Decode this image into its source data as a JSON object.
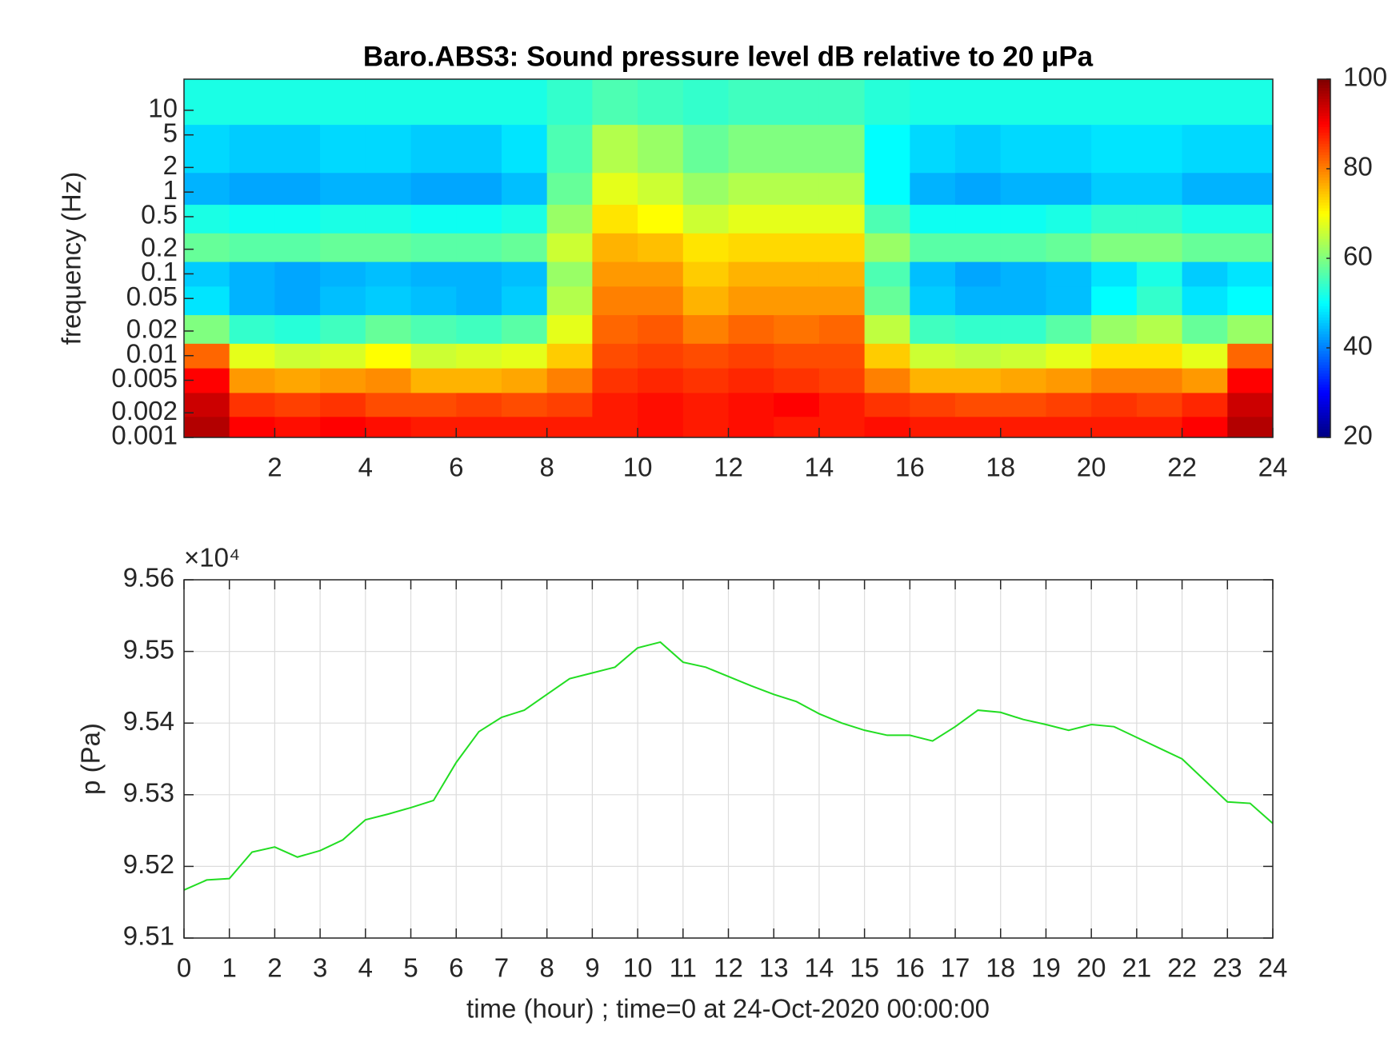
{
  "chart_data": [
    {
      "type": "heatmap",
      "title": "Baro.ABS3: Sound pressure level dB relative to 20 μPa",
      "y_label": "frequency (Hz)",
      "colormap": "jet",
      "log_y": true,
      "x": [
        0.5,
        1.5,
        2.5,
        3.5,
        4.5,
        5.5,
        6.5,
        7.5,
        8.5,
        9.5,
        10.5,
        11.5,
        12.5,
        13.5,
        14.5,
        15.5,
        16.5,
        17.5,
        18.5,
        19.5,
        20.5,
        21.5,
        22.5,
        23.5
      ],
      "y": [
        0.0013,
        0.0025,
        0.005,
        0.01,
        0.02,
        0.05,
        0.1,
        0.2,
        0.5,
        1,
        3,
        15
      ],
      "z": [
        [
          96,
          90,
          89,
          90,
          89,
          88,
          88,
          88,
          88,
          88,
          89,
          88,
          89,
          88,
          88,
          89,
          88,
          88,
          88,
          88,
          88,
          88,
          90,
          96
        ],
        [
          94,
          86,
          85,
          86,
          84,
          84,
          85,
          84,
          85,
          88,
          89,
          88,
          89,
          90,
          88,
          86,
          85,
          84,
          84,
          85,
          86,
          85,
          87,
          94
        ],
        [
          90,
          78,
          77,
          78,
          79,
          76,
          76,
          77,
          80,
          86,
          87,
          86,
          87,
          86,
          85,
          80,
          76,
          76,
          77,
          78,
          80,
          80,
          78,
          90
        ],
        [
          82,
          68,
          66,
          67,
          70,
          66,
          67,
          68,
          74,
          84,
          85,
          84,
          85,
          84,
          84,
          74,
          66,
          65,
          66,
          68,
          72,
          72,
          68,
          82
        ],
        [
          60,
          54,
          53,
          55,
          58,
          56,
          55,
          57,
          68,
          82,
          83,
          80,
          82,
          81,
          82,
          65,
          55,
          54,
          54,
          57,
          62,
          64,
          58,
          62
        ],
        [
          48,
          44,
          43,
          45,
          46,
          45,
          44,
          46,
          64,
          80,
          80,
          76,
          78,
          78,
          78,
          58,
          46,
          44,
          44,
          45,
          50,
          54,
          48,
          50
        ],
        [
          46,
          44,
          43,
          44,
          45,
          44,
          44,
          45,
          62,
          78,
          78,
          74,
          76,
          76,
          76,
          56,
          45,
          43,
          44,
          45,
          48,
          52,
          46,
          48
        ],
        [
          58,
          57,
          57,
          58,
          58,
          57,
          57,
          58,
          66,
          76,
          75,
          72,
          73,
          73,
          73,
          62,
          57,
          57,
          57,
          58,
          60,
          60,
          58,
          58
        ],
        [
          52,
          51,
          51,
          52,
          52,
          51,
          51,
          52,
          62,
          72,
          70,
          66,
          68,
          68,
          68,
          56,
          51,
          51,
          51,
          52,
          54,
          54,
          52,
          52
        ],
        [
          44,
          43,
          43,
          44,
          44,
          43,
          43,
          45,
          58,
          68,
          66,
          62,
          64,
          64,
          64,
          50,
          44,
          43,
          44,
          44,
          46,
          46,
          44,
          44
        ],
        [
          47,
          46,
          46,
          47,
          47,
          46,
          46,
          48,
          56,
          64,
          62,
          58,
          60,
          60,
          60,
          50,
          47,
          46,
          47,
          47,
          48,
          48,
          47,
          47
        ],
        [
          52,
          52,
          52,
          52,
          52,
          52,
          52,
          52,
          54,
          56,
          55,
          54,
          55,
          55,
          55,
          53,
          52,
          52,
          52,
          52,
          52,
          52,
          52,
          52
        ]
      ],
      "xlim": [
        0,
        24
      ],
      "xticks": [
        2,
        4,
        6,
        8,
        10,
        12,
        14,
        16,
        18,
        20,
        22,
        24
      ],
      "ylim": [
        0.001,
        24
      ],
      "yticks": [
        0.001,
        0.002,
        0.005,
        0.01,
        0.02,
        0.05,
        0.1,
        0.2,
        0.5,
        1,
        2,
        5,
        10
      ],
      "zlim": [
        20,
        100
      ],
      "zticks": [
        20,
        40,
        60,
        80,
        100
      ]
    },
    {
      "type": "line",
      "x_label": "time (hour) ; time=0 at 24-Oct-2020 00:00:00",
      "y_label": "p (Pa)",
      "y_multiplier": "×10⁴",
      "color": "#22dd22",
      "grid": true,
      "x": [
        0,
        0.5,
        1,
        1.5,
        2,
        2.5,
        3,
        3.5,
        4,
        4.5,
        5,
        5.5,
        6,
        6.5,
        7,
        7.5,
        8,
        8.5,
        9,
        9.5,
        10,
        10.5,
        11,
        11.5,
        12,
        12.5,
        13,
        13.5,
        14,
        14.5,
        15,
        15.5,
        16,
        16.5,
        17,
        17.5,
        18,
        18.5,
        19,
        19.5,
        20,
        20.5,
        21,
        21.5,
        22,
        22.5,
        23,
        23.5,
        24
      ],
      "values": [
        95167,
        95181,
        95183,
        95220,
        95227,
        95213,
        95222,
        95237,
        95265,
        95273,
        95282,
        95292,
        95345,
        95388,
        95408,
        95418,
        95440,
        95462,
        95470,
        95478,
        95505,
        95513,
        95485,
        95478,
        95465,
        95452,
        95440,
        95430,
        95413,
        95400,
        95390,
        95383,
        95383,
        95375,
        95395,
        95418,
        95415,
        95405,
        95398,
        95390,
        95398,
        95395,
        95380,
        95365,
        95350,
        95320,
        95290,
        95288,
        95260
      ],
      "xlim": [
        0,
        24
      ],
      "xticks": [
        0,
        1,
        2,
        3,
        4,
        5,
        6,
        7,
        8,
        9,
        10,
        11,
        12,
        13,
        14,
        15,
        16,
        17,
        18,
        19,
        20,
        21,
        22,
        23,
        24
      ],
      "ylim": [
        95100,
        95600
      ],
      "yticks": [
        {
          "value": 95100,
          "label": "9.51"
        },
        {
          "value": 95200,
          "label": "9.52"
        },
        {
          "value": 95300,
          "label": "9.53"
        },
        {
          "value": 95400,
          "label": "9.54"
        },
        {
          "value": 95500,
          "label": "9.55"
        },
        {
          "value": 95600,
          "label": "9.56"
        }
      ]
    }
  ]
}
